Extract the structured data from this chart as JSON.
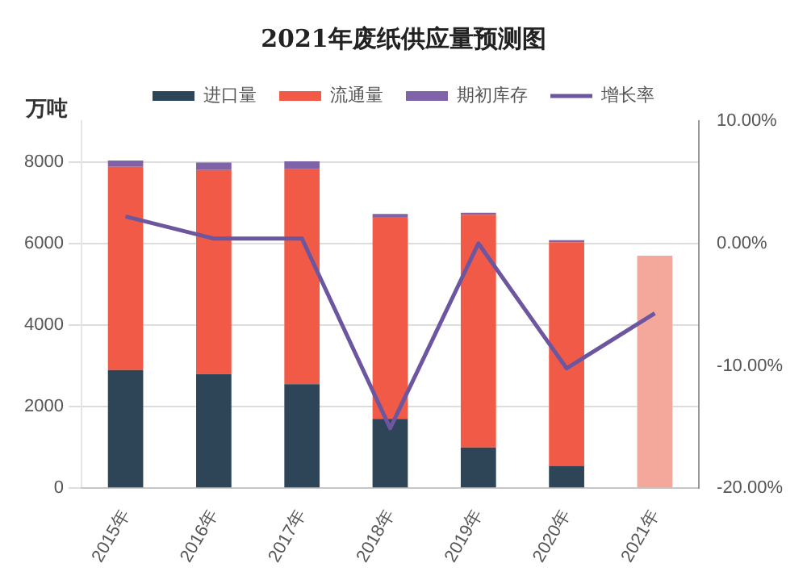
{
  "chart_data": {
    "type": "bar",
    "title": "2021年废纸供应量预测图",
    "ylabel": "万吨",
    "stacked": true,
    "categories": [
      "2015年",
      "2016年",
      "2017年",
      "2018年",
      "2019年",
      "2020年",
      "2021年"
    ],
    "series": [
      {
        "name": "进口量",
        "color": "#2e4457",
        "values": [
          2900,
          2800,
          2550,
          1700,
          1000,
          550,
          null
        ]
      },
      {
        "name": "流通量",
        "color": "#f05a47",
        "colors": [
          "#f05a47",
          "#f05a47",
          "#f05a47",
          "#f05a47",
          "#f05a47",
          "#f05a47",
          "#f4a89c"
        ],
        "values": [
          4980,
          5000,
          5270,
          4950,
          5700,
          5480,
          5700
        ]
      },
      {
        "name": "期初库存",
        "color": "#7e63a8",
        "values": [
          150,
          180,
          190,
          70,
          50,
          50,
          null
        ]
      },
      {
        "name": "增长率",
        "type": "line",
        "axis": "y2",
        "color": "#6c56a0",
        "values": [
          2.2,
          0.4,
          0.4,
          -15.1,
          0,
          -10.2,
          -5.7
        ]
      }
    ],
    "ylim": [
      0,
      9000
    ],
    "yticks": [
      0,
      2000,
      4000,
      6000,
      8000
    ],
    "y2lim": [
      -20,
      10
    ],
    "y2ticks": [
      {
        "value": -20,
        "label": "-20.00%"
      },
      {
        "value": -10,
        "label": "-10.00%"
      },
      {
        "value": 0,
        "label": "0.00%"
      },
      {
        "value": 10,
        "label": "10.00%"
      }
    ],
    "grid": "y",
    "legend": "top",
    "marker": "none",
    "line_style": "solid"
  }
}
